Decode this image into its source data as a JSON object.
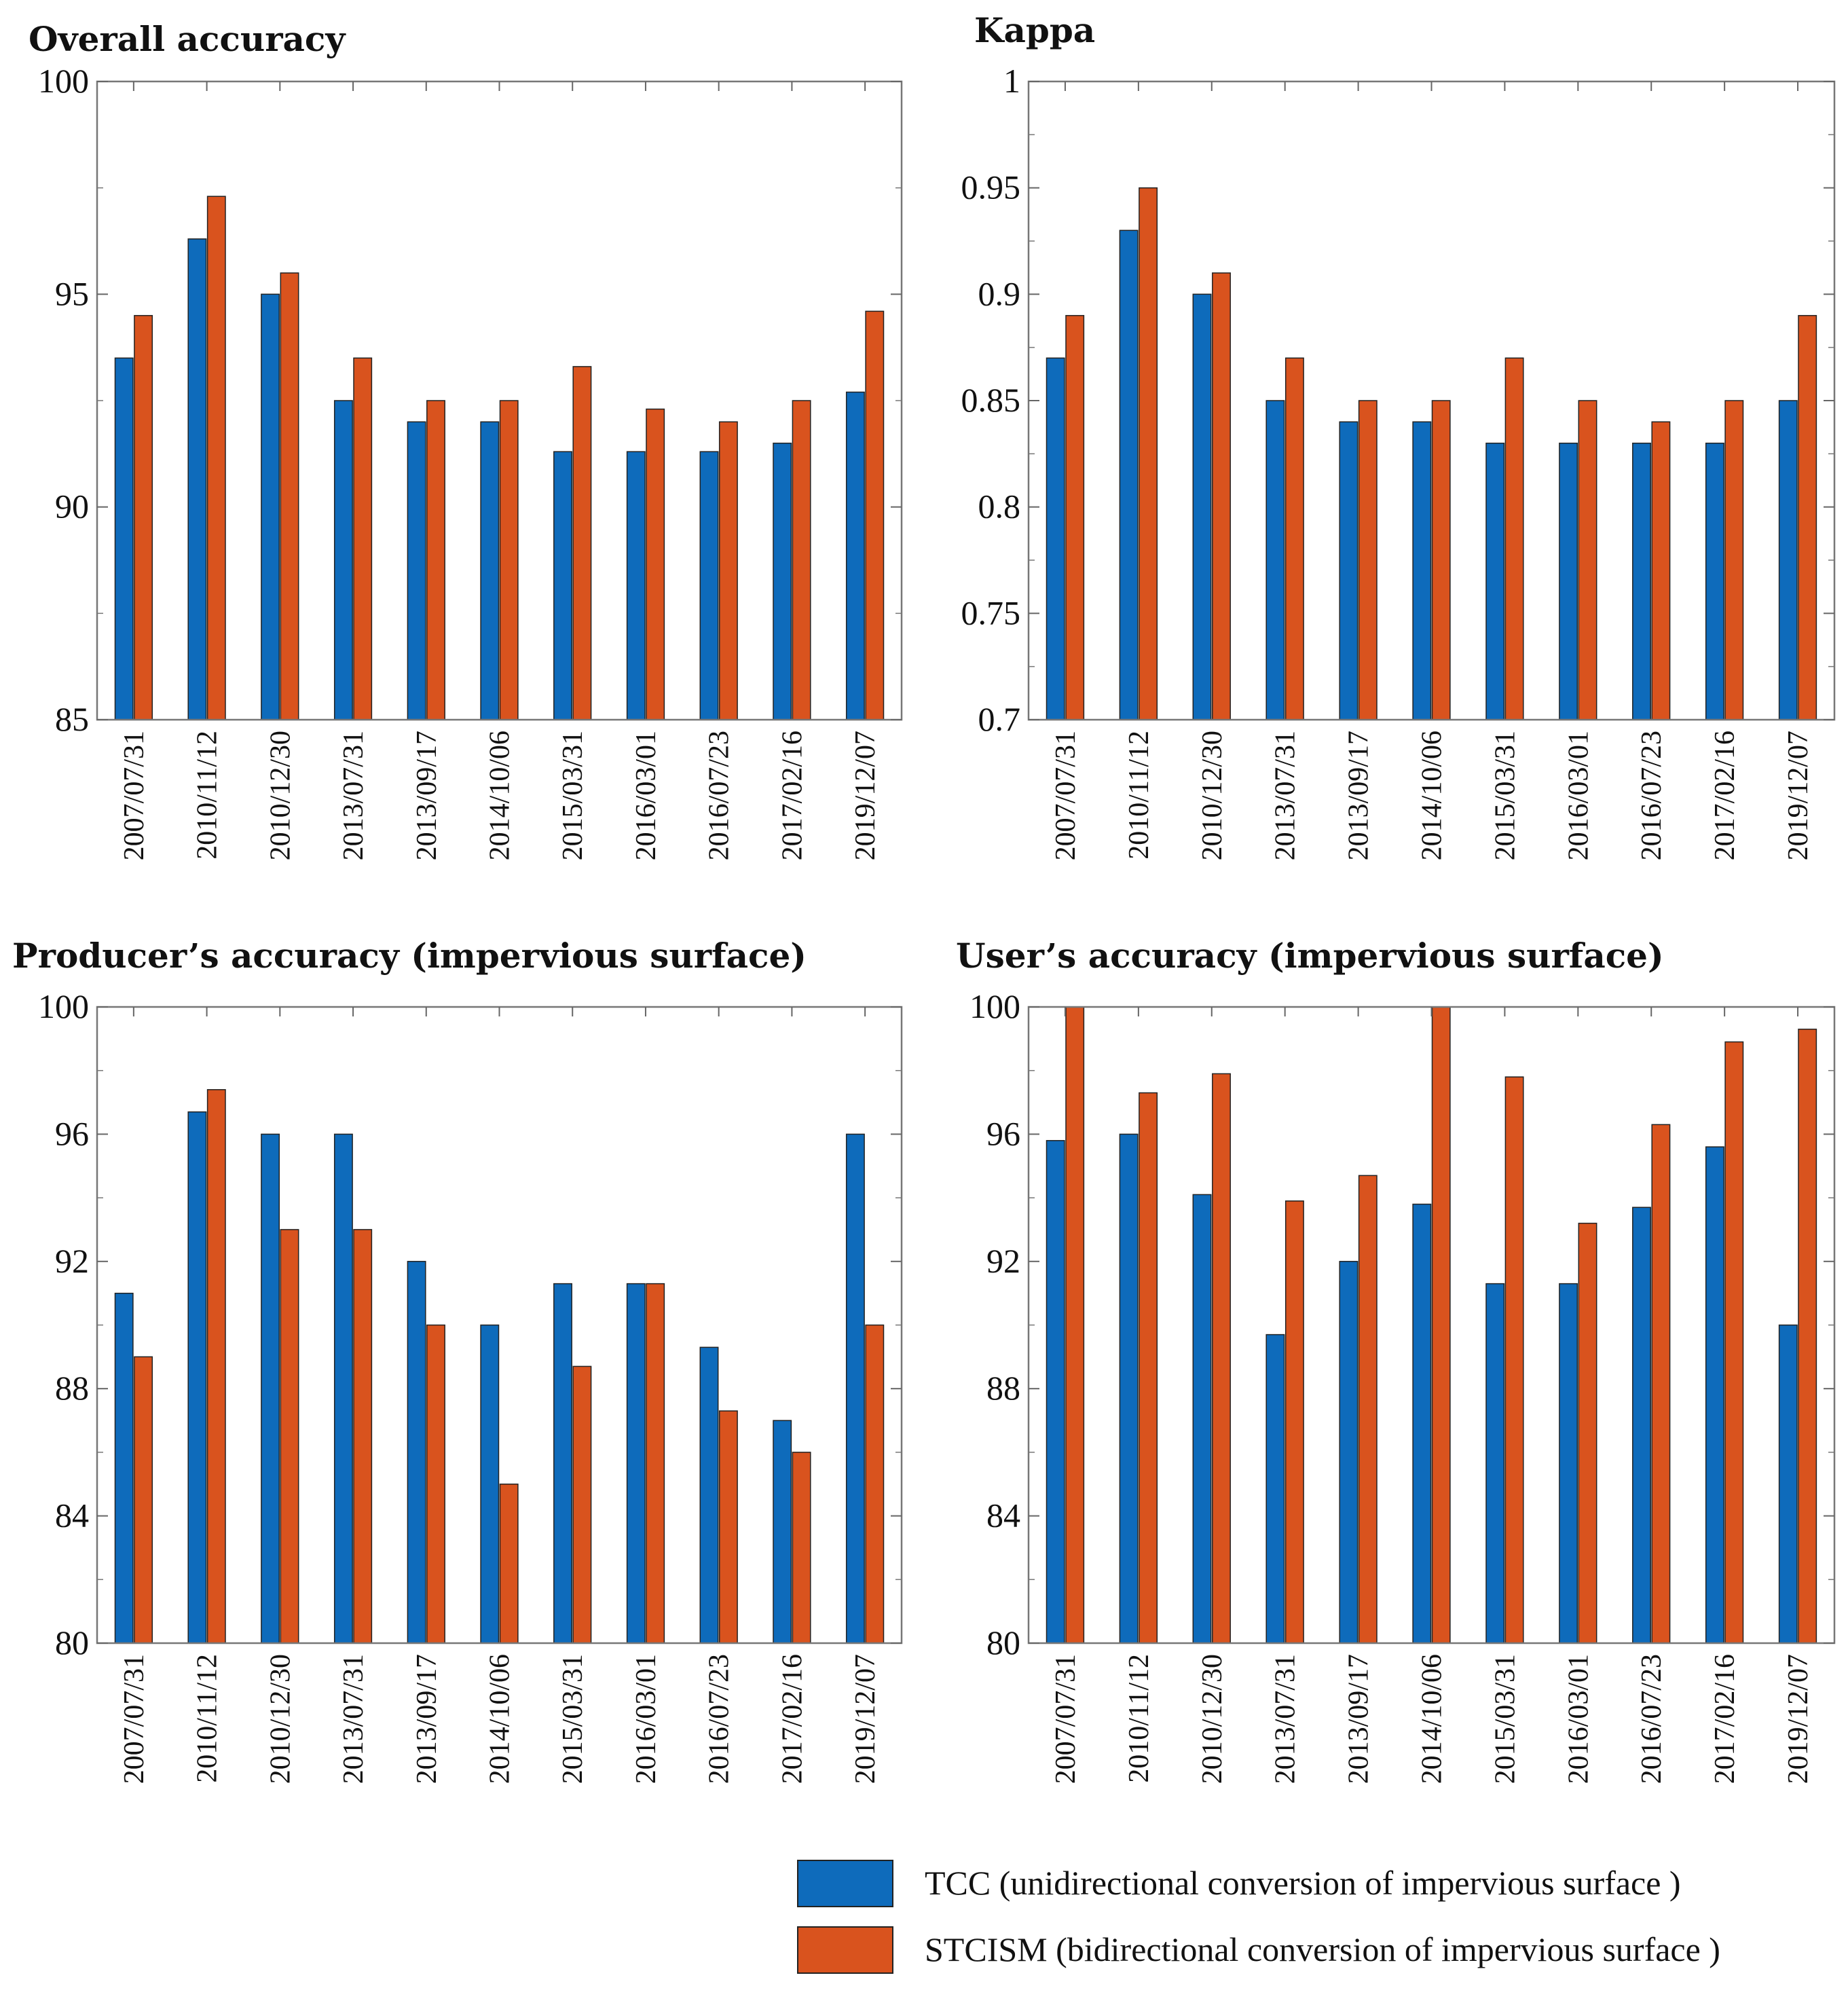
{
  "legend": {
    "series": [
      {
        "name": "TCC (unidirectional conversion of impervious surface )",
        "color": "#0e6bbb"
      },
      {
        "name": "STCISM (bidirectional conversion of impervious surface )",
        "color": "#d9531e"
      }
    ]
  },
  "chart_data": [
    {
      "type": "bar",
      "title": "Overall accuracy",
      "categories": [
        "2007/07/31",
        "2010/11/12",
        "2010/12/30",
        "2013/07/31",
        "2013/09/17",
        "2014/10/06",
        "2015/03/31",
        "2016/03/01",
        "2016/07/23",
        "2017/02/16",
        "2019/12/07"
      ],
      "series": [
        {
          "name": "TCC",
          "values": [
            93.5,
            96.3,
            95.0,
            92.5,
            92.0,
            92.0,
            91.3,
            91.3,
            91.3,
            91.5,
            92.7
          ]
        },
        {
          "name": "STCISM",
          "values": [
            94.5,
            97.3,
            95.5,
            93.5,
            92.5,
            92.5,
            93.3,
            92.3,
            92.0,
            92.5,
            94.6
          ]
        }
      ],
      "ylim": [
        85,
        100
      ],
      "yticks": [
        "100",
        "95",
        "90",
        "85"
      ],
      "ytick_values": [
        100,
        95,
        90,
        85
      ],
      "xlabel": "",
      "ylabel": ""
    },
    {
      "type": "bar",
      "title": "Kappa",
      "categories": [
        "2007/07/31",
        "2010/11/12",
        "2010/12/30",
        "2013/07/31",
        "2013/09/17",
        "2014/10/06",
        "2015/03/31",
        "2016/03/01",
        "2016/07/23",
        "2017/02/16",
        "2019/12/07"
      ],
      "series": [
        {
          "name": "TCC",
          "values": [
            0.87,
            0.93,
            0.9,
            0.85,
            0.84,
            0.84,
            0.83,
            0.83,
            0.83,
            0.83,
            0.85
          ]
        },
        {
          "name": "STCISM",
          "values": [
            0.89,
            0.95,
            0.91,
            0.87,
            0.85,
            0.85,
            0.87,
            0.85,
            0.84,
            0.85,
            0.89
          ]
        }
      ],
      "ylim": [
        0.7,
        1.0
      ],
      "yticks": [
        "1",
        "0.95",
        "0.9",
        "0.85",
        "0.8",
        "0.75",
        "0.7"
      ],
      "ytick_values": [
        1,
        0.95,
        0.9,
        0.85,
        0.8,
        0.75,
        0.7
      ],
      "xlabel": "",
      "ylabel": ""
    },
    {
      "type": "bar",
      "title": "Producer’s accuracy (impervious surface)",
      "categories": [
        "2007/07/31",
        "2010/11/12",
        "2010/12/30",
        "2013/07/31",
        "2013/09/17",
        "2014/10/06",
        "2015/03/31",
        "2016/03/01",
        "2016/07/23",
        "2017/02/16",
        "2019/12/07"
      ],
      "series": [
        {
          "name": "TCC",
          "values": [
            91.0,
            96.7,
            96.0,
            96.0,
            92.0,
            90.0,
            91.3,
            91.3,
            89.3,
            87.0,
            96.0
          ]
        },
        {
          "name": "STCISM",
          "values": [
            89.0,
            97.4,
            93.0,
            93.0,
            90.0,
            85.0,
            88.7,
            91.3,
            87.3,
            86.0,
            90.0
          ]
        }
      ],
      "ylim": [
        80,
        100
      ],
      "yticks": [
        "100",
        "96",
        "92",
        "88",
        "84",
        "80"
      ],
      "ytick_values": [
        100,
        96,
        92,
        88,
        84,
        80
      ],
      "xlabel": "",
      "ylabel": ""
    },
    {
      "type": "bar",
      "title": "User’s accuracy (impervious surface)",
      "categories": [
        "2007/07/31",
        "2010/11/12",
        "2010/12/30",
        "2013/07/31",
        "2013/09/17",
        "2014/10/06",
        "2015/03/31",
        "2016/03/01",
        "2016/07/23",
        "2017/02/16",
        "2019/12/07"
      ],
      "series": [
        {
          "name": "TCC",
          "values": [
            95.8,
            96.0,
            94.1,
            89.7,
            92.0,
            93.8,
            91.3,
            91.3,
            93.7,
            95.6,
            90.0
          ]
        },
        {
          "name": "STCISM",
          "values": [
            100.0,
            97.3,
            97.9,
            93.9,
            94.7,
            100.0,
            97.8,
            93.2,
            96.3,
            98.9,
            99.3
          ]
        }
      ],
      "ylim": [
        80,
        100
      ],
      "yticks": [
        "100",
        "96",
        "92",
        "88",
        "84",
        "80"
      ],
      "ytick_values": [
        100,
        96,
        92,
        88,
        84,
        80
      ],
      "xlabel": "",
      "ylabel": ""
    }
  ]
}
